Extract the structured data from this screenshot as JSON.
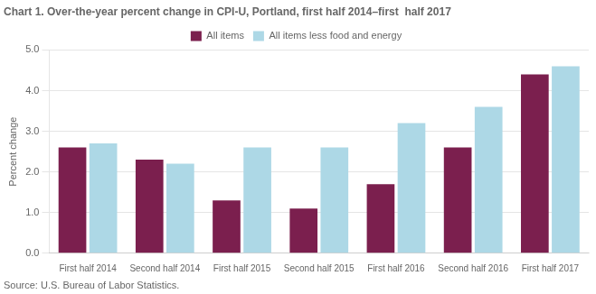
{
  "chart_data": {
    "type": "bar",
    "title": "Chart 1. Over-the-year percent change in CPI-U, Portland, first half 2014–first  half 2017",
    "y_label": "Percent change",
    "source": "Source: U.S. Bureau of Labor Statistics.",
    "categories": [
      "First half 2014",
      "Second half 2014",
      "First half 2015",
      "Second half 2015",
      "First half 2016",
      "Second half 2016",
      "First half 2017"
    ],
    "series": [
      {
        "name": "All items",
        "color": "#7B1F4E",
        "values": [
          2.6,
          2.3,
          1.3,
          1.1,
          1.7,
          2.6,
          4.4
        ]
      },
      {
        "name": "All items less food and energy",
        "color": "#ADD8E6",
        "values": [
          2.7,
          2.2,
          2.6,
          2.6,
          3.2,
          3.6,
          4.6
        ]
      }
    ],
    "ylim": [
      0.0,
      5.0
    ],
    "yticks": [
      {
        "value": 0,
        "label": "0.0"
      },
      {
        "value": 1,
        "label": "1.0"
      },
      {
        "value": 2,
        "label": "2.0"
      },
      {
        "value": 3,
        "label": "3.0"
      },
      {
        "value": 4,
        "label": "4.0"
      },
      {
        "value": 5,
        "label": "5.0"
      }
    ],
    "grid": true,
    "legend": "top"
  }
}
